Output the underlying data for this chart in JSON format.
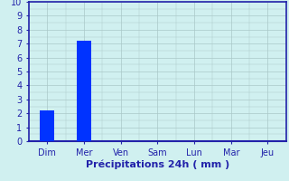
{
  "categories": [
    "Dim",
    "Mer",
    "Ven",
    "Sam",
    "Lun",
    "Mar",
    "Jeu"
  ],
  "values": [
    2.2,
    7.2,
    0,
    0,
    0,
    0,
    0
  ],
  "bar_color": "#0033ff",
  "background_color": "#d0f0f0",
  "grid_color": "#aac8c8",
  "axis_color": "#2222aa",
  "text_color": "#2222aa",
  "xlabel": "Précipitations 24h ( mm )",
  "ylim": [
    0,
    10
  ],
  "yticks": [
    0,
    1,
    2,
    3,
    4,
    5,
    6,
    7,
    8,
    9,
    10
  ],
  "xlabel_fontsize": 8,
  "tick_fontsize": 7,
  "bar_width": 0.4,
  "figsize": [
    3.2,
    2.0
  ],
  "dpi": 100
}
